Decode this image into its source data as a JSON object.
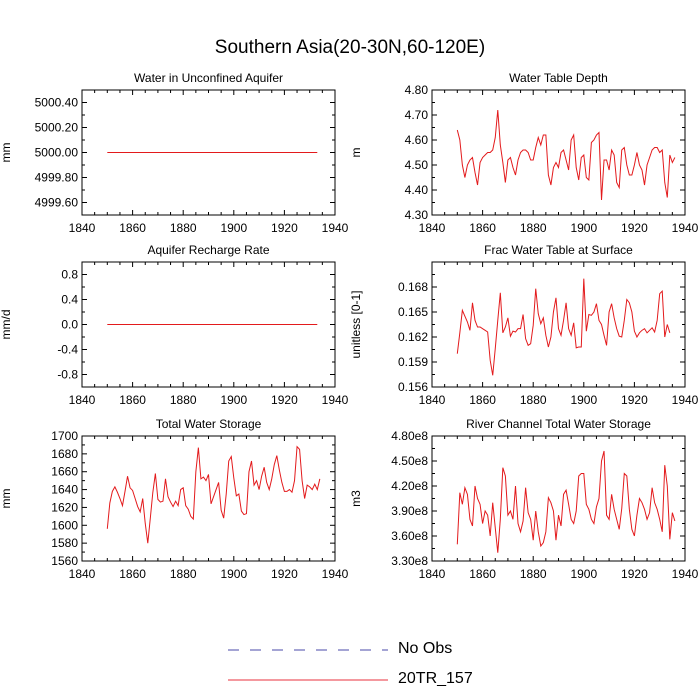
{
  "page": {
    "title": "Southern Asia(20-30N,60-120E)"
  },
  "legend": [
    {
      "label": "No Obs",
      "color": "#4a4aa8",
      "dash": true
    },
    {
      "label": "20TR_157",
      "color": "#e8323c",
      "dash": false
    }
  ],
  "colors": {
    "series": "#e31a1c",
    "axis": "#000000"
  },
  "chart_data": [
    {
      "type": "line",
      "title": "Water in Unconfined Aquifer",
      "ylabel": "mm",
      "xlim": [
        1840,
        1940
      ],
      "ylim": [
        4999.5,
        5000.5
      ],
      "xticks": [
        1840,
        1860,
        1880,
        1900,
        1920,
        1940
      ],
      "yticks": [
        4999.6,
        4999.8,
        5000.0,
        5000.2,
        5000.4
      ],
      "ytick_labels": [
        "4999.60",
        "4999.80",
        "5000.00",
        "5000.20",
        "5000.40"
      ],
      "series": [
        {
          "name": "20TR_157",
          "x_start": 1850,
          "step": 1,
          "values": [
            5000,
            5000,
            5000,
            5000,
            5000,
            5000,
            5000,
            5000,
            5000,
            5000,
            5000,
            5000,
            5000,
            5000,
            5000,
            5000,
            5000,
            5000,
            5000,
            5000,
            5000,
            5000,
            5000,
            5000,
            5000,
            5000,
            5000,
            5000,
            5000,
            5000,
            5000,
            5000,
            5000,
            5000,
            5000,
            5000,
            5000,
            5000,
            5000,
            5000,
            5000,
            5000,
            5000,
            5000,
            5000,
            5000,
            5000,
            5000,
            5000,
            5000,
            5000,
            5000,
            5000,
            5000,
            5000,
            5000,
            5000,
            5000,
            5000,
            5000,
            5000,
            5000,
            5000,
            5000,
            5000,
            5000,
            5000,
            5000,
            5000,
            5000,
            5000,
            5000,
            5000,
            5000,
            5000,
            5000,
            5000,
            5000,
            5000,
            5000,
            5000,
            5000,
            5000,
            5000
          ]
        }
      ]
    },
    {
      "type": "line",
      "title": "Water Table Depth",
      "ylabel": "m",
      "xlim": [
        1840,
        1940
      ],
      "ylim": [
        4.3,
        4.8
      ],
      "xticks": [
        1840,
        1860,
        1880,
        1900,
        1920,
        1940
      ],
      "yticks": [
        4.3,
        4.4,
        4.5,
        4.6,
        4.7,
        4.8
      ],
      "ytick_labels": [
        "4.30",
        "4.40",
        "4.50",
        "4.60",
        "4.70",
        "4.80"
      ],
      "series": [
        {
          "name": "20TR_157",
          "x_start": 1850,
          "step": 1,
          "values": [
            4.64,
            4.6,
            4.5,
            4.45,
            4.5,
            4.52,
            4.53,
            4.47,
            4.42,
            4.51,
            4.53,
            4.54,
            4.55,
            4.55,
            4.56,
            4.61,
            4.72,
            4.58,
            4.51,
            4.43,
            4.52,
            4.53,
            4.49,
            4.46,
            4.52,
            4.55,
            4.56,
            4.56,
            4.55,
            4.52,
            4.52,
            4.57,
            4.61,
            4.58,
            4.62,
            4.62,
            4.46,
            4.42,
            4.49,
            4.51,
            4.49,
            4.55,
            4.56,
            4.52,
            4.48,
            4.6,
            4.62,
            4.49,
            4.44,
            4.53,
            4.54,
            4.45,
            4.44,
            4.59,
            4.6,
            4.62,
            4.63,
            4.36,
            4.52,
            4.52,
            4.48,
            4.56,
            4.54,
            4.43,
            4.41,
            4.56,
            4.57,
            4.5,
            4.46,
            4.46,
            4.5,
            4.55,
            4.5,
            4.48,
            4.42,
            4.5,
            4.53,
            4.56,
            4.57,
            4.57,
            4.55,
            4.56,
            4.43,
            4.37,
            4.54,
            4.51,
            4.53
          ]
        }
      ]
    },
    {
      "type": "line",
      "title": "Aquifer Recharge Rate",
      "ylabel": "mm/d",
      "xlim": [
        1840,
        1940
      ],
      "ylim": [
        -1.0,
        1.0
      ],
      "xticks": [
        1840,
        1860,
        1880,
        1900,
        1920,
        1940
      ],
      "yticks": [
        -0.8,
        -0.4,
        0.0,
        0.4,
        0.8
      ],
      "ytick_labels": [
        "-0.8",
        "-0.4",
        "0.0",
        "0.4",
        "0.8"
      ],
      "series": [
        {
          "name": "20TR_157",
          "x_start": 1850,
          "step": 1,
          "values": [
            0,
            0,
            0,
            0,
            0,
            0,
            0,
            0,
            0,
            0,
            0,
            0,
            0,
            0,
            0,
            0,
            0,
            0,
            0,
            0,
            0,
            0,
            0,
            0,
            0,
            0,
            0,
            0,
            0,
            0,
            0,
            0,
            0,
            0,
            0,
            0,
            0,
            0,
            0,
            0,
            0,
            0,
            0,
            0,
            0,
            0,
            0,
            0,
            0,
            0,
            0,
            0,
            0,
            0,
            0,
            0,
            0,
            0,
            0,
            0,
            0,
            0,
            0,
            0,
            0,
            0,
            0,
            0,
            0,
            0,
            0,
            0,
            0,
            0,
            0,
            0,
            0,
            0,
            0,
            0,
            0,
            0,
            0,
            0
          ]
        }
      ]
    },
    {
      "type": "line",
      "title": "Frac Water Table at Surface",
      "ylabel": "unitless [0-1]",
      "xlim": [
        1840,
        1940
      ],
      "ylim": [
        0.156,
        0.171
      ],
      "xticks": [
        1840,
        1860,
        1880,
        1900,
        1920,
        1940
      ],
      "yticks": [
        0.156,
        0.159,
        0.162,
        0.165,
        0.168
      ],
      "ytick_labels": [
        "0.156",
        "0.159",
        "0.162",
        "0.165",
        "0.168"
      ],
      "series": [
        {
          "name": "20TR_157",
          "x_start": 1850,
          "step": 1,
          "values": [
            0.16,
            0.1625,
            0.1652,
            0.1645,
            0.1638,
            0.1628,
            0.1661,
            0.164,
            0.1632,
            0.1632,
            0.163,
            0.1628,
            0.1626,
            0.1592,
            0.1574,
            0.1606,
            0.164,
            0.1673,
            0.1625,
            0.1632,
            0.1643,
            0.1621,
            0.1627,
            0.1626,
            0.163,
            0.163,
            0.1647,
            0.1618,
            0.161,
            0.1612,
            0.1634,
            0.1678,
            0.1648,
            0.1636,
            0.1643,
            0.1622,
            0.1608,
            0.162,
            0.165,
            0.1667,
            0.163,
            0.1622,
            0.164,
            0.1661,
            0.163,
            0.1622,
            0.1637,
            0.1607,
            0.1608,
            0.1608,
            0.169,
            0.1627,
            0.1647,
            0.1646,
            0.165,
            0.166,
            0.164,
            0.1635,
            0.1622,
            0.161,
            0.165,
            0.166,
            0.1643,
            0.163,
            0.1621,
            0.162,
            0.164,
            0.1665,
            0.1661,
            0.165,
            0.1627,
            0.162,
            0.1625,
            0.1628,
            0.163,
            0.1625,
            0.1628,
            0.1631,
            0.1626,
            0.164,
            0.1672,
            0.1675,
            0.162,
            0.1635,
            0.1625
          ]
        }
      ]
    },
    {
      "type": "line",
      "title": "Total Water Storage",
      "ylabel": "mm",
      "xlim": [
        1840,
        1940
      ],
      "ylim": [
        1560,
        1700
      ],
      "xticks": [
        1840,
        1860,
        1880,
        1900,
        1920,
        1940
      ],
      "yticks": [
        1560,
        1580,
        1600,
        1620,
        1640,
        1660,
        1680,
        1700
      ],
      "ytick_labels": [
        "1560",
        "1580",
        "1600",
        "1620",
        "1640",
        "1660",
        "1680",
        "1700"
      ],
      "series": [
        {
          "name": "20TR_157",
          "x_start": 1850,
          "step": 1,
          "values": [
            1596,
            1625,
            1638,
            1643,
            1637,
            1630,
            1622,
            1638,
            1655,
            1642,
            1639,
            1630,
            1621,
            1615,
            1630,
            1602,
            1580,
            1608,
            1637,
            1658,
            1629,
            1626,
            1627,
            1652,
            1632,
            1626,
            1621,
            1627,
            1622,
            1640,
            1642,
            1622,
            1618,
            1610,
            1607,
            1660,
            1687,
            1652,
            1654,
            1650,
            1657,
            1624,
            1632,
            1640,
            1648,
            1617,
            1608,
            1635,
            1672,
            1677,
            1653,
            1633,
            1635,
            1616,
            1612,
            1613,
            1660,
            1672,
            1645,
            1650,
            1640,
            1655,
            1665,
            1648,
            1640,
            1652,
            1668,
            1678,
            1662,
            1648,
            1638,
            1638,
            1640,
            1637,
            1650,
            1688,
            1685,
            1650,
            1630,
            1645,
            1643,
            1640,
            1646,
            1640,
            1652
          ]
        }
      ]
    },
    {
      "type": "line",
      "title": "River Channel Total Water Storage",
      "ylabel": "m3",
      "xlim": [
        1840,
        1940
      ],
      "ylim": [
        330000000,
        480000000
      ],
      "xticks": [
        1840,
        1860,
        1880,
        1900,
        1920,
        1940
      ],
      "yticks": [
        330000000,
        360000000,
        390000000,
        420000000,
        450000000,
        480000000
      ],
      "ytick_labels": [
        "3.30e8",
        "3.60e8",
        "3.90e8",
        "4.20e8",
        "4.50e8",
        "4.80e8"
      ],
      "series": [
        {
          "name": "20TR_157",
          "x_start": 1850,
          "step": 1,
          "values": [
            350000000,
            412000000,
            398000000,
            418000000,
            410000000,
            380000000,
            372000000,
            420000000,
            405000000,
            398000000,
            375000000,
            390000000,
            385000000,
            360000000,
            400000000,
            370000000,
            340000000,
            380000000,
            442000000,
            432000000,
            385000000,
            390000000,
            380000000,
            420000000,
            375000000,
            365000000,
            378000000,
            418000000,
            388000000,
            380000000,
            355000000,
            390000000,
            365000000,
            348000000,
            352000000,
            365000000,
            406000000,
            400000000,
            390000000,
            355000000,
            385000000,
            372000000,
            410000000,
            415000000,
            398000000,
            380000000,
            375000000,
            390000000,
            432000000,
            435000000,
            435000000,
            398000000,
            392000000,
            380000000,
            375000000,
            395000000,
            405000000,
            450000000,
            462000000,
            385000000,
            380000000,
            410000000,
            392000000,
            380000000,
            368000000,
            393000000,
            435000000,
            432000000,
            392000000,
            368000000,
            360000000,
            385000000,
            405000000,
            400000000,
            392000000,
            380000000,
            388000000,
            418000000,
            400000000,
            392000000,
            380000000,
            365000000,
            445000000,
            420000000,
            356000000,
            388000000,
            378000000
          ]
        }
      ]
    }
  ]
}
